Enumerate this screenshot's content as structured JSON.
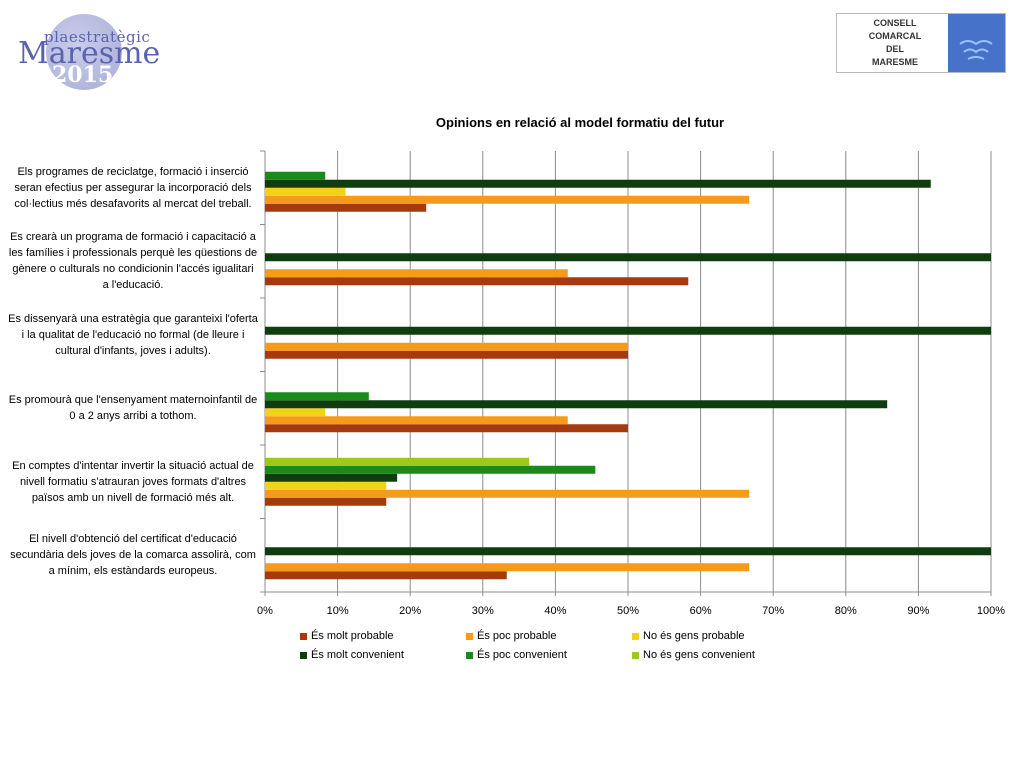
{
  "logo_left": {
    "subtitle": "plaestratègic",
    "name": "Maresme",
    "year": "2015"
  },
  "logo_right": {
    "lines": [
      "CONSELL",
      "COMARCAL",
      "DEL",
      "MARESME"
    ]
  },
  "chart_data": {
    "type": "bar",
    "orientation": "horizontal",
    "title": "Opinions en relació al model formatiu del futur",
    "xlim": [
      0,
      100
    ],
    "x_ticks": [
      "0%",
      "10%",
      "20%",
      "30%",
      "40%",
      "50%",
      "60%",
      "70%",
      "80%",
      "90%",
      "100%"
    ],
    "grid": true,
    "legend_position": "bottom",
    "categories": [
      "Els programes de reciclatge, formació i inserció seran efectius per assegurar la incorporació dels col·lectius més desafavorits al mercat del treball.",
      "Es crearà un programa de formació i capacitació a les famílies i professionals perquè les qüestions de gènere o culturals no condicionin l'accés igualitari a l'educació.",
      "Es dissenyarà una estratègia que garanteixi l'oferta i la qualitat de l'educació no formal (de lleure i cultural d'infants, joves i adults).",
      "Es promourà que l'ensenyament maternoinfantil de 0 a 2 anys arribi a tothom.",
      "En comptes d'intentar invertir la situació actual de nivell formatiu s'atrauran joves formats d'altres països amb un nivell de formació més alt.",
      "El nivell d'obtenció del certificat d'educació secundària dels joves de la comarca assolirà, com a mínim, els estàndards europeus."
    ],
    "series": [
      {
        "name": "És molt probable",
        "color": "#a53a0f",
        "values": [
          22.2,
          58.3,
          50,
          50,
          16.7,
          33.3
        ]
      },
      {
        "name": "És poc probable",
        "color": "#f59a1a",
        "values": [
          66.7,
          41.7,
          50,
          41.7,
          66.7,
          66.7
        ]
      },
      {
        "name": "No és gens probable",
        "color": "#f2d31a",
        "values": [
          11.1,
          0,
          0,
          8.3,
          16.7,
          0
        ]
      },
      {
        "name": "És molt convenient",
        "color": "#0f3d0f",
        "values": [
          91.7,
          100,
          100,
          85.7,
          18.2,
          100
        ]
      },
      {
        "name": "És poc convenient",
        "color": "#1a8a1a",
        "values": [
          8.3,
          0,
          0,
          14.3,
          45.5,
          0
        ]
      },
      {
        "name": "No és gens convenient",
        "color": "#9dc81e",
        "values": [
          0,
          0,
          0,
          0,
          36.4,
          0
        ]
      }
    ]
  }
}
